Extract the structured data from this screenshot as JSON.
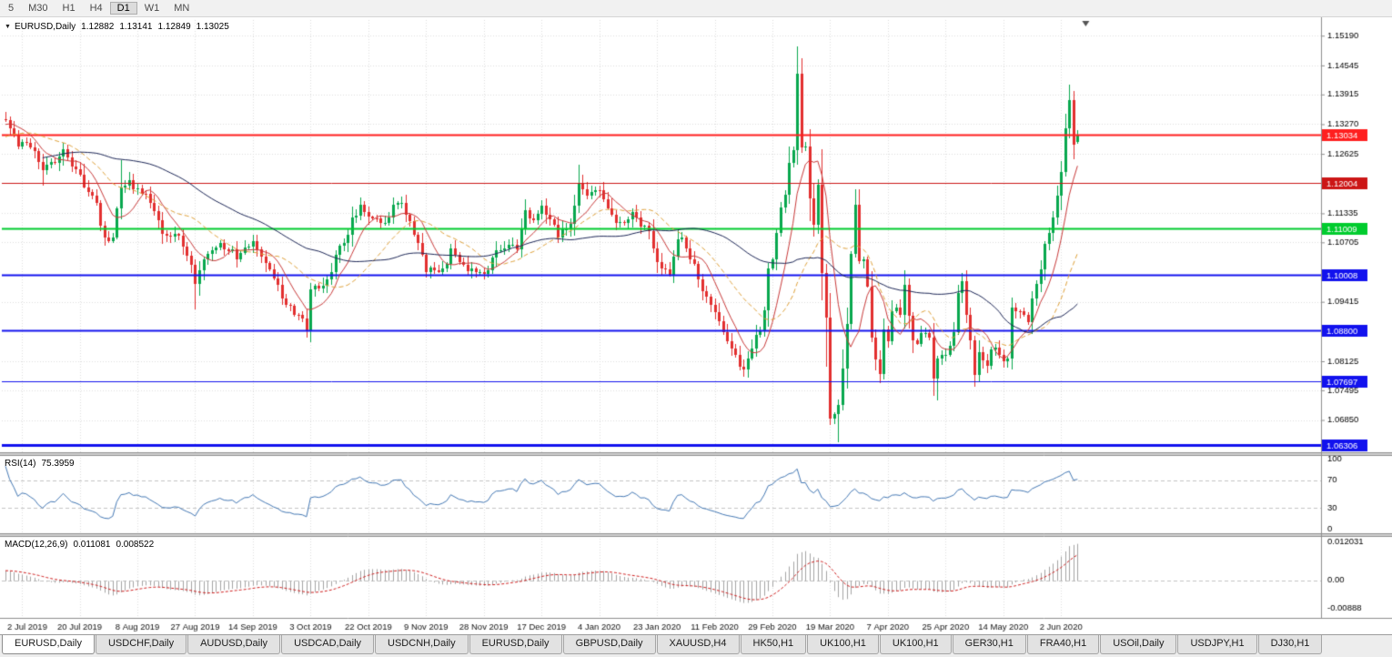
{
  "toolbar": {
    "timeframes": [
      "5",
      "M30",
      "H1",
      "H4",
      "D1",
      "W1",
      "MN"
    ],
    "active_timeframe": "D1"
  },
  "main_chart": {
    "symbol": "EURUSD,Daily",
    "open": "1.12882",
    "high": "1.13141",
    "low": "1.12849",
    "close": "1.13025"
  },
  "rsi_panel": {
    "name": "RSI(14)",
    "value": "75.3959"
  },
  "macd_panel": {
    "name": "MACD(12,26,9)",
    "value": "0.011081",
    "signal": "0.008522"
  },
  "chart_data": [
    {
      "type": "candlestick",
      "symbol": "EURUSD",
      "timeframe": "Daily",
      "x_tick_labels": [
        "2 Jul 2019",
        "20 Jul 2019",
        "8 Aug 2019",
        "27 Aug 2019",
        "14 Sep 2019",
        "3 Oct 2019",
        "22 Oct 2019",
        "9 Nov 2019",
        "28 Nov 2019",
        "17 Dec 2019",
        "4 Jan 2020",
        "23 Jan 2020",
        "11 Feb 2020",
        "29 Feb 2020",
        "19 Mar 2020",
        "7 Apr 2020",
        "25 Apr 2020",
        "14 May 2020",
        "2 Jun 2020"
      ],
      "bars_per_tick": 14,
      "first_tick_bar": 4,
      "total_bars": 261,
      "y_axis_ticks": [
        "1.15190",
        "1.14545",
        "1.13915",
        "1.13270",
        "1.12625",
        "1.11335",
        "1.10705",
        "1.09415",
        "1.08125",
        "1.07495",
        "1.06850"
      ],
      "y_range": [
        1.0615,
        1.1553
      ],
      "last_bar_ohlc": [
        1.12882,
        1.13141,
        1.12849,
        1.13025
      ],
      "up_color": "#08a84e",
      "down_color": "#e22f2f",
      "grid_color": "#dedede",
      "warmup_path": [
        [
          0,
          1.116
        ],
        [
          18,
          1.1235
        ],
        [
          30,
          1.13
        ],
        [
          39,
          1.1338
        ]
      ],
      "price_anchors": [
        [
          0,
          1.133
        ],
        [
          3,
          1.1285
        ],
        [
          6,
          1.128
        ],
        [
          9,
          1.1227
        ],
        [
          12,
          1.125
        ],
        [
          14,
          1.127
        ],
        [
          18,
          1.121
        ],
        [
          22,
          1.115
        ],
        [
          24,
          1.107
        ],
        [
          26,
          1.1085
        ],
        [
          28,
          1.12
        ],
        [
          30,
          1.12
        ],
        [
          32,
          1.1185
        ],
        [
          34,
          1.117
        ],
        [
          36,
          1.114
        ],
        [
          38,
          1.1095
        ],
        [
          40,
          1.1085
        ],
        [
          42,
          1.109
        ],
        [
          46,
          1.099
        ],
        [
          48,
          1.103
        ],
        [
          52,
          1.107
        ],
        [
          56,
          1.104
        ],
        [
          60,
          1.1074
        ],
        [
          64,
          1.101
        ],
        [
          68,
          1.094
        ],
        [
          72,
          1.09
        ],
        [
          73,
          1.088
        ],
        [
          74,
          1.0965
        ],
        [
          78,
          1.099
        ],
        [
          80,
          1.104
        ],
        [
          82,
          1.107
        ],
        [
          86,
          1.116
        ],
        [
          88,
          1.1128
        ],
        [
          92,
          1.111
        ],
        [
          94,
          1.115
        ],
        [
          96,
          1.116
        ],
        [
          100,
          1.107
        ],
        [
          102,
          1.1017
        ],
        [
          106,
          1.101
        ],
        [
          108,
          1.105
        ],
        [
          112,
          1.101
        ],
        [
          116,
          1.1
        ],
        [
          120,
          1.106
        ],
        [
          124,
          1.106
        ],
        [
          126,
          1.113
        ],
        [
          128,
          1.112
        ],
        [
          130,
          1.115
        ],
        [
          134,
          1.109
        ],
        [
          137,
          1.1105
        ],
        [
          139,
          1.12
        ],
        [
          141,
          1.117
        ],
        [
          144,
          1.119
        ],
        [
          148,
          1.111
        ],
        [
          152,
          1.113
        ],
        [
          156,
          1.109
        ],
        [
          158,
          1.103
        ],
        [
          161,
          1.1
        ],
        [
          163,
          1.109
        ],
        [
          166,
          1.104
        ],
        [
          170,
          1.095
        ],
        [
          172,
          1.0917
        ],
        [
          176,
          1.084
        ],
        [
          179,
          1.079
        ],
        [
          181,
          1.085
        ],
        [
          183,
          1.088
        ],
        [
          185,
          1.0998
        ],
        [
          186,
          1.1026
        ],
        [
          188,
          1.1134
        ],
        [
          189,
          1.1172
        ],
        [
          191,
          1.1284
        ],
        [
          192,
          1.1448
        ],
        [
          193,
          1.1281
        ],
        [
          194,
          1.127
        ],
        [
          195,
          1.1184
        ],
        [
          196,
          1.1109
        ],
        [
          197,
          1.118
        ],
        [
          198,
          1.0995
        ],
        [
          199,
          1.0916
        ],
        [
          200,
          1.0692
        ],
        [
          201,
          1.0695
        ],
        [
          202,
          1.0724
        ],
        [
          203,
          1.0789
        ],
        [
          204,
          1.0883
        ],
        [
          205,
          1.103
        ],
        [
          206,
          1.1141
        ],
        [
          207,
          1.1046
        ],
        [
          208,
          1.1033
        ],
        [
          209,
          1.096
        ],
        [
          210,
          1.0855
        ],
        [
          211,
          1.0808
        ],
        [
          212,
          1.0791
        ],
        [
          213,
          1.0894
        ],
        [
          214,
          1.0857
        ],
        [
          215,
          1.093
        ],
        [
          217,
          1.0915
        ],
        [
          218,
          1.098
        ],
        [
          220,
          1.084
        ],
        [
          222,
          1.0875
        ],
        [
          224,
          1.086
        ],
        [
          225,
          1.078
        ],
        [
          226,
          1.0821
        ],
        [
          228,
          1.083
        ],
        [
          230,
          1.087
        ],
        [
          231,
          1.0955
        ],
        [
          232,
          1.098
        ],
        [
          234,
          1.084
        ],
        [
          235,
          1.0795
        ],
        [
          236,
          1.0834
        ],
        [
          238,
          1.081
        ],
        [
          240,
          1.085
        ],
        [
          242,
          1.0805
        ],
        [
          243,
          1.082
        ],
        [
          244,
          1.0915
        ],
        [
          246,
          1.0924
        ],
        [
          248,
          1.09
        ],
        [
          250,
          1.098
        ],
        [
          251,
          1.1009
        ],
        [
          252,
          1.1076
        ],
        [
          253,
          1.1101
        ],
        [
          254,
          1.1134
        ],
        [
          255,
          1.117
        ],
        [
          256,
          1.1234
        ],
        [
          257,
          1.1338
        ],
        [
          258,
          1.1372
        ],
        [
          259,
          1.1288
        ],
        [
          260,
          1.13025
        ]
      ],
      "extreme_overrides": [
        [
          9,
          "low",
          1.1193
        ],
        [
          28,
          "high",
          1.1249
        ],
        [
          46,
          "low",
          1.0926
        ],
        [
          73,
          "low",
          1.0879
        ],
        [
          139,
          "high",
          1.1239
        ],
        [
          179,
          "low",
          1.0778
        ],
        [
          192,
          "high",
          1.1495
        ],
        [
          199,
          "low",
          1.0801
        ],
        [
          202,
          "low",
          1.0636
        ],
        [
          226,
          "low",
          1.0727
        ],
        [
          235,
          "low",
          1.0767
        ],
        [
          258,
          "high",
          1.1384
        ]
      ],
      "horizontal_lines": [
        {
          "price": 1.13034,
          "label": "1.13034",
          "color": "#ff1f1f",
          "width": 2
        },
        {
          "price": 1.12004,
          "label": "1.12004",
          "color": "#cc1616",
          "width": 1
        },
        {
          "price": 1.11009,
          "label": "1.11009",
          "color": "#00cc2e",
          "width": 2
        },
        {
          "price": 1.10008,
          "label": "1.10008",
          "color": "#1212ee",
          "width": 2
        },
        {
          "price": 1.088,
          "label": "1.08800",
          "color": "#1212ee",
          "width": 2
        },
        {
          "price": 1.07697,
          "label": "1.07697",
          "color": "#1212ee",
          "width": 1
        },
        {
          "price": 1.06306,
          "label": "1.06306",
          "color": "#1212ee",
          "width": 3
        }
      ],
      "moving_averages": [
        {
          "period": 8,
          "color": "#c93a3a",
          "dash": false
        },
        {
          "period": 20,
          "color": "#dfa139",
          "dash": true
        },
        {
          "period": 50,
          "color": "#1d2757",
          "dash": false
        }
      ]
    },
    {
      "type": "line",
      "name": "RSI(14)",
      "period": 14,
      "current_value": 75.3959,
      "levels": [
        70,
        30
      ],
      "y_axis_ticks": [
        "100",
        "70",
        "30",
        "0"
      ],
      "y_range": [
        -6,
        106
      ],
      "color": "#4579b5"
    },
    {
      "type": "macd",
      "name": "MACD(12,26,9)",
      "fast": 12,
      "slow": 26,
      "signal_period": 9,
      "current_macd": 0.011081,
      "current_signal": 0.008522,
      "y_axis_ticks": [
        "0.012031",
        "0.00",
        "-0.00888"
      ],
      "y_range": [
        -0.0118,
        0.0138
      ],
      "histogram_color": "#a3a3a3",
      "signal_color": "#d02020"
    }
  ],
  "tabs": [
    {
      "label": "EURUSD,Daily",
      "active": true
    },
    {
      "label": "USDCHF,Daily",
      "active": false
    },
    {
      "label": "AUDUSD,Daily",
      "active": false
    },
    {
      "label": "USDCAD,Daily",
      "active": false
    },
    {
      "label": "USDCNH,Daily",
      "active": false
    },
    {
      "label": "EURUSD,Daily",
      "active": false
    },
    {
      "label": "GBPUSD,Daily",
      "active": false
    },
    {
      "label": "XAUUSD,H4",
      "active": false
    },
    {
      "label": "HK50,H1",
      "active": false
    },
    {
      "label": "UK100,H1",
      "active": false
    },
    {
      "label": "UK100,H1",
      "active": false
    },
    {
      "label": "GER30,H1",
      "active": false
    },
    {
      "label": "FRA40,H1",
      "active": false
    },
    {
      "label": "USOil,Daily",
      "active": false
    },
    {
      "label": "USDJPY,H1",
      "active": false
    },
    {
      "label": "DJ30,H1",
      "active": false
    }
  ]
}
